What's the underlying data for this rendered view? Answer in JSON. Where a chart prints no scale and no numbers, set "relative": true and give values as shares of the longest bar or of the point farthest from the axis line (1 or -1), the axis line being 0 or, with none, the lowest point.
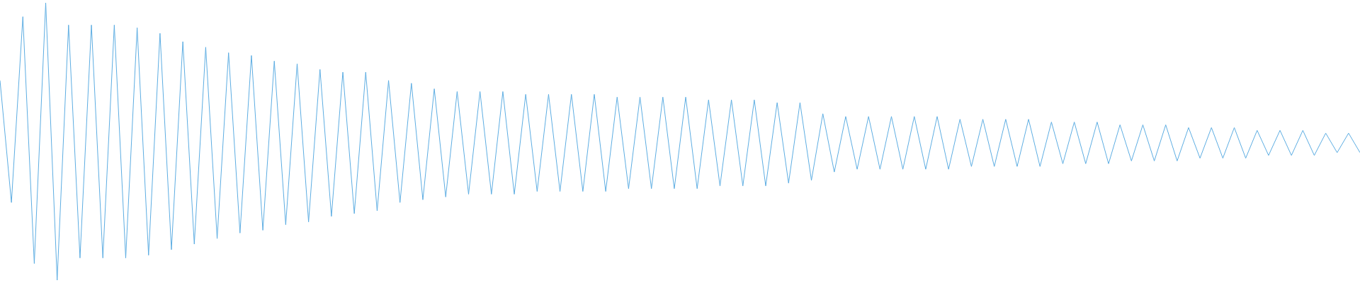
{
  "chart_data": {
    "type": "line",
    "relative": true,
    "legend": false,
    "marker": "none",
    "line_style": "solid",
    "categories": [
      null,
      null,
      null,
      null,
      null,
      null,
      null,
      null,
      null,
      null,
      null,
      null,
      null,
      null,
      null,
      null,
      null,
      null,
      null,
      null,
      null,
      null,
      null,
      null,
      null,
      null,
      null,
      null,
      null,
      null,
      null,
      null,
      null,
      null,
      null,
      null,
      null,
      null,
      null,
      null,
      null,
      null,
      null,
      null,
      null,
      null,
      null,
      null,
      null,
      null,
      null,
      null,
      null,
      null,
      null,
      null,
      null,
      null,
      null,
      null,
      null,
      null,
      null,
      null,
      null,
      null,
      null,
      null,
      null,
      null,
      null,
      null,
      null,
      null,
      null,
      null,
      null,
      null,
      null,
      null,
      null,
      null,
      null,
      null,
      null,
      null,
      null,
      null,
      null,
      null,
      null,
      null,
      null,
      null,
      null,
      null,
      null,
      null,
      null,
      null,
      null,
      null,
      null,
      null,
      null,
      null,
      null,
      null,
      null,
      null,
      null,
      null,
      null,
      null,
      null,
      null,
      null,
      null,
      null,
      null
    ],
    "series": [
      {
        "color": "#5dade2",
        "values": [
          0.72,
          0.28,
          0.95,
          0.06,
          1,
          0,
          0.92,
          0.08,
          0.92,
          0.08,
          0.92,
          0.08,
          0.91,
          0.09,
          0.89,
          0.11,
          0.86,
          0.13,
          0.84,
          0.15,
          0.82,
          0.17,
          0.81,
          0.18,
          0.79,
          0.2,
          0.78,
          0.21,
          0.76,
          0.23,
          0.75,
          0.24,
          0.75,
          0.25,
          0.72,
          0.28,
          0.71,
          0.29,
          0.69,
          0.3,
          0.68,
          0.31,
          0.68,
          0.31,
          0.68,
          0.31,
          0.67,
          0.32,
          0.67,
          0.32,
          0.67,
          0.32,
          0.67,
          0.32,
          0.66,
          0.33,
          0.66,
          0.33,
          0.66,
          0.33,
          0.66,
          0.33,
          0.65,
          0.34,
          0.65,
          0.34,
          0.65,
          0.34,
          0.64,
          0.35,
          0.64,
          0.36,
          0.6,
          0.39,
          0.59,
          0.4,
          0.59,
          0.4,
          0.59,
          0.4,
          0.59,
          0.4,
          0.59,
          0.4,
          0.58,
          0.41,
          0.58,
          0.41,
          0.58,
          0.41,
          0.58,
          0.41,
          0.57,
          0.42,
          0.57,
          0.42,
          0.57,
          0.42,
          0.56,
          0.43,
          0.56,
          0.43,
          0.56,
          0.43,
          0.55,
          0.44,
          0.55,
          0.44,
          0.55,
          0.44,
          0.54,
          0.45,
          0.54,
          0.45,
          0.54,
          0.45,
          0.53,
          0.46,
          0.53,
          0.46
        ]
      }
    ]
  }
}
